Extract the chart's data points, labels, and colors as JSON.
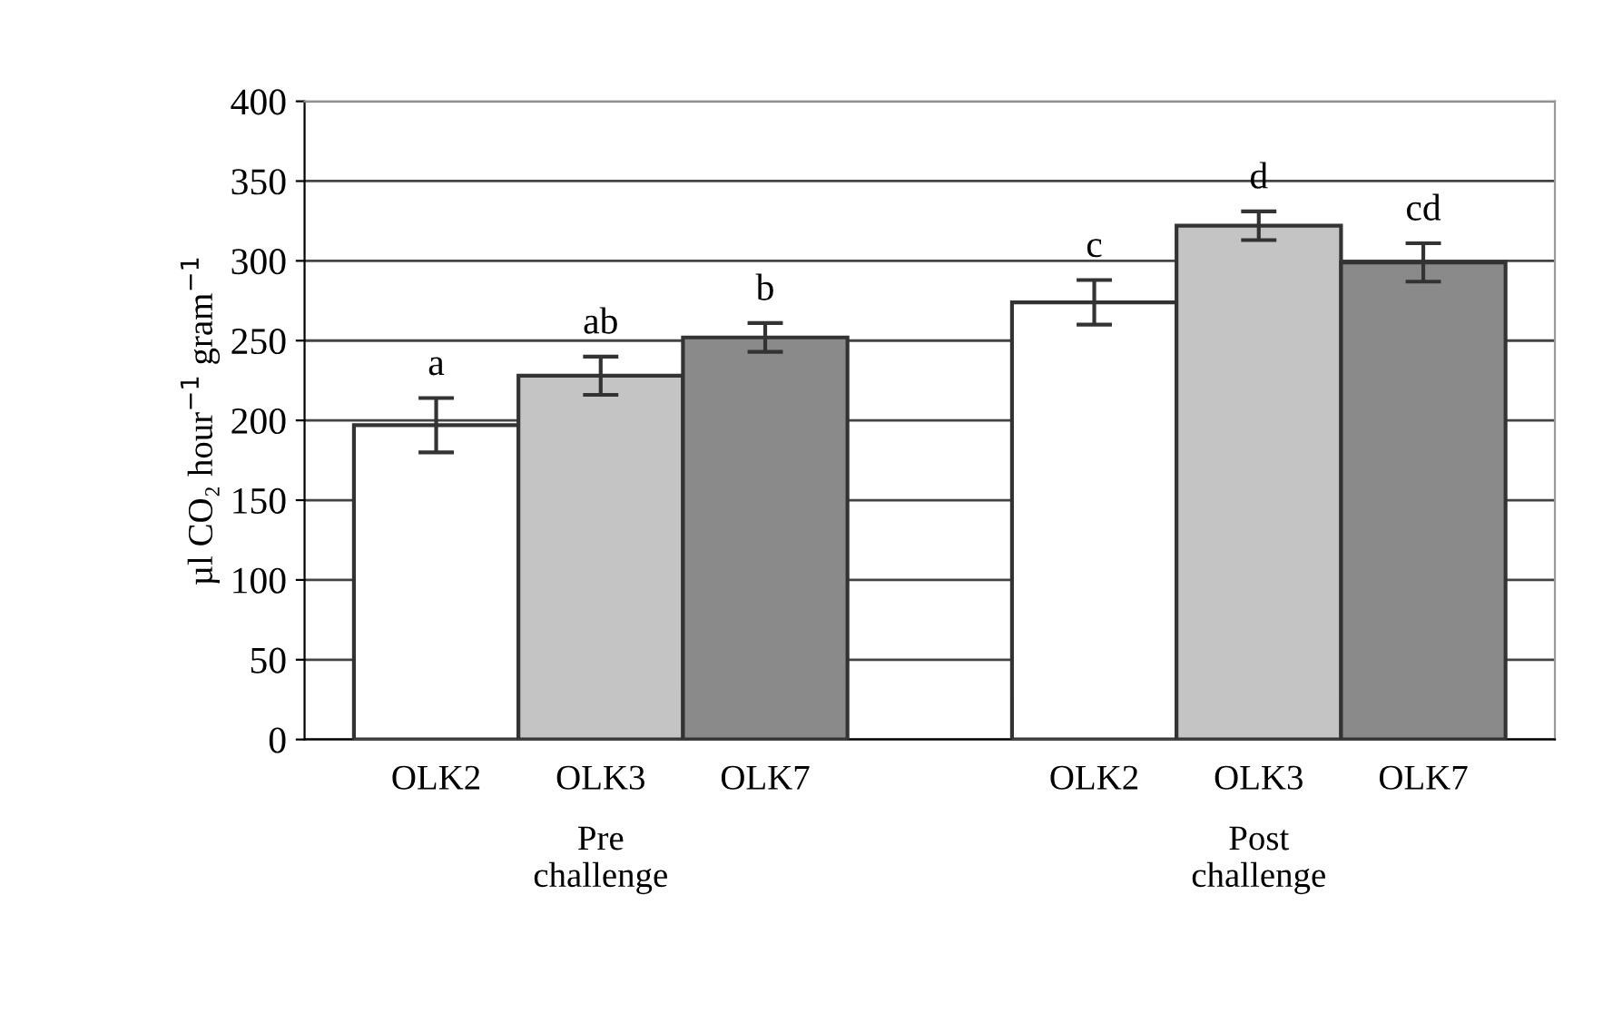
{
  "chart_data": {
    "type": "bar",
    "ylabel": "µl CO₂ hour$^{−1}$ gram$^{−1}$",
    "categories": [
      "OLK2",
      "OLK3",
      "OLK7",
      null,
      "OLK2",
      "OLK3",
      "OLK7"
    ],
    "values": [
      197,
      228,
      252,
      null,
      274,
      322,
      299
    ],
    "errors": [
      17,
      12,
      9,
      null,
      14,
      9,
      12
    ],
    "colors": [
      "#ffffff",
      "#c4c4c4",
      "#8a8a8a",
      "#ffffff",
      "#ffffff",
      "#c4c4c4",
      "#8a8a8a"
    ],
    "ylim": [
      0,
      400
    ],
    "yticks": [
      0,
      50,
      100,
      150,
      200,
      250,
      300,
      350,
      400
    ],
    "grid": "y",
    "annotations": [
      "a",
      "ab",
      "b",
      "c",
      "d",
      "cd",
      "Pre\nchallenge",
      "Post\nchallenge"
    ]
  }
}
